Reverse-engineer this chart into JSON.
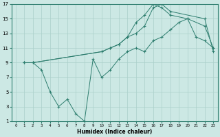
{
  "xlabel": "Humidex (Indice chaleur)",
  "bg_color": "#cce8e4",
  "grid_color": "#aacfca",
  "line_color": "#2d7d6e",
  "xlim": [
    -0.5,
    23.5
  ],
  "ylim": [
    1,
    17
  ],
  "xticks": [
    0,
    1,
    2,
    3,
    4,
    5,
    6,
    7,
    8,
    9,
    10,
    11,
    12,
    13,
    14,
    15,
    16,
    17,
    18,
    19,
    20,
    21,
    22,
    23
  ],
  "yticks": [
    1,
    3,
    5,
    7,
    9,
    11,
    13,
    15,
    17
  ],
  "line1_x": [
    1,
    2,
    3,
    4,
    5,
    6,
    7,
    8,
    9,
    10,
    11,
    12,
    13,
    14,
    15,
    16,
    17,
    18,
    19,
    20,
    21,
    22,
    23
  ],
  "line1_y": [
    9,
    9,
    8,
    5,
    3,
    4,
    2,
    1,
    9.5,
    7,
    8,
    9.5,
    10.5,
    11,
    10.5,
    12,
    12.5,
    13.5,
    14.5,
    15,
    12.5,
    12,
    11
  ],
  "line2_x": [
    1,
    2,
    10,
    11,
    12,
    13,
    14,
    15,
    16,
    17,
    18,
    20,
    22,
    23
  ],
  "line2_y": [
    9,
    9,
    10.5,
    11,
    11.5,
    12.5,
    14.5,
    15.5,
    17,
    16.5,
    15.5,
    15,
    14,
    11
  ],
  "line3_x": [
    1,
    2,
    10,
    11,
    12,
    13,
    14,
    15,
    16,
    17,
    18,
    22,
    23
  ],
  "line3_y": [
    9,
    9,
    10.5,
    11,
    11.5,
    12.5,
    13,
    14,
    16.5,
    17,
    16,
    15,
    10.5
  ]
}
